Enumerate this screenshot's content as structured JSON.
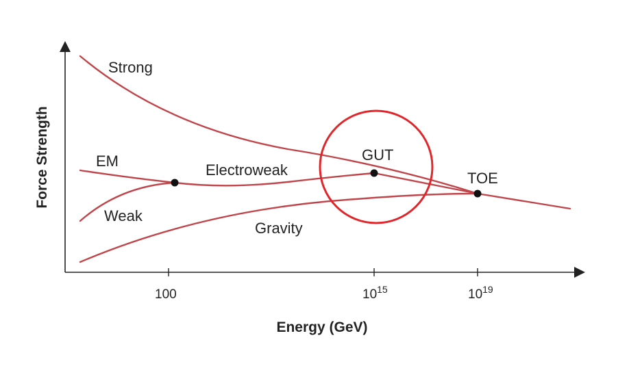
{
  "figure": {
    "curves": {
      "strong": "Strong",
      "em": "EM",
      "weak": "Weak",
      "electroweak": "Electroweak",
      "gravity": "Gravity"
    },
    "points": {
      "gut": "GUT",
      "toe": "TOE"
    },
    "axes": {
      "y_title": "Force Strength",
      "x_title": "Energy (GeV)",
      "x_ticks": [
        {
          "base": "100",
          "exp": ""
        },
        {
          "base": "10",
          "exp": "15"
        },
        {
          "base": "10",
          "exp": "19"
        }
      ]
    },
    "colors": {
      "curve": "#c0454a",
      "highlight": "#e0262b",
      "axis": "#222222"
    }
  }
}
